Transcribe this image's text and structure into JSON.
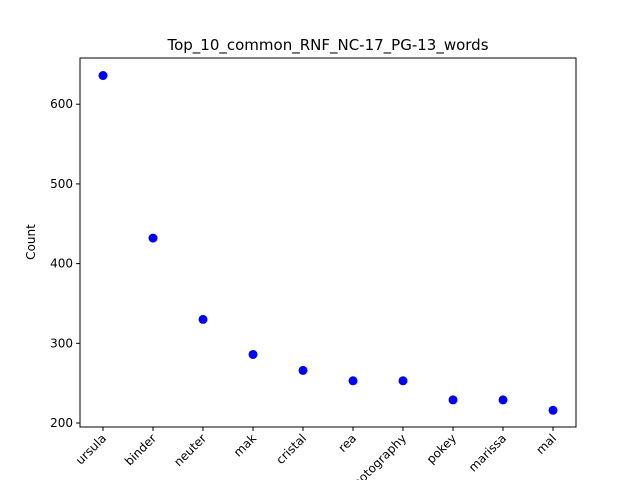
{
  "chart_data": {
    "type": "scatter",
    "title": "Top_10_common_RNF_NC-17_PG-13_words",
    "xlabel": "",
    "ylabel": "Count",
    "categories": [
      "ursula",
      "binder",
      "neuter",
      "mak",
      "cristal",
      "rea",
      "photography",
      "pokey",
      "marissa",
      "mal"
    ],
    "values": [
      636,
      432,
      330,
      286,
      266,
      253,
      253,
      229,
      229,
      216
    ],
    "ylim": [
      195,
      658
    ],
    "yticks": [
      200,
      300,
      400,
      500,
      600
    ],
    "x_tick_rotation_deg": 45,
    "marker_color": "#0000ff",
    "grid": false,
    "legend": "none"
  }
}
